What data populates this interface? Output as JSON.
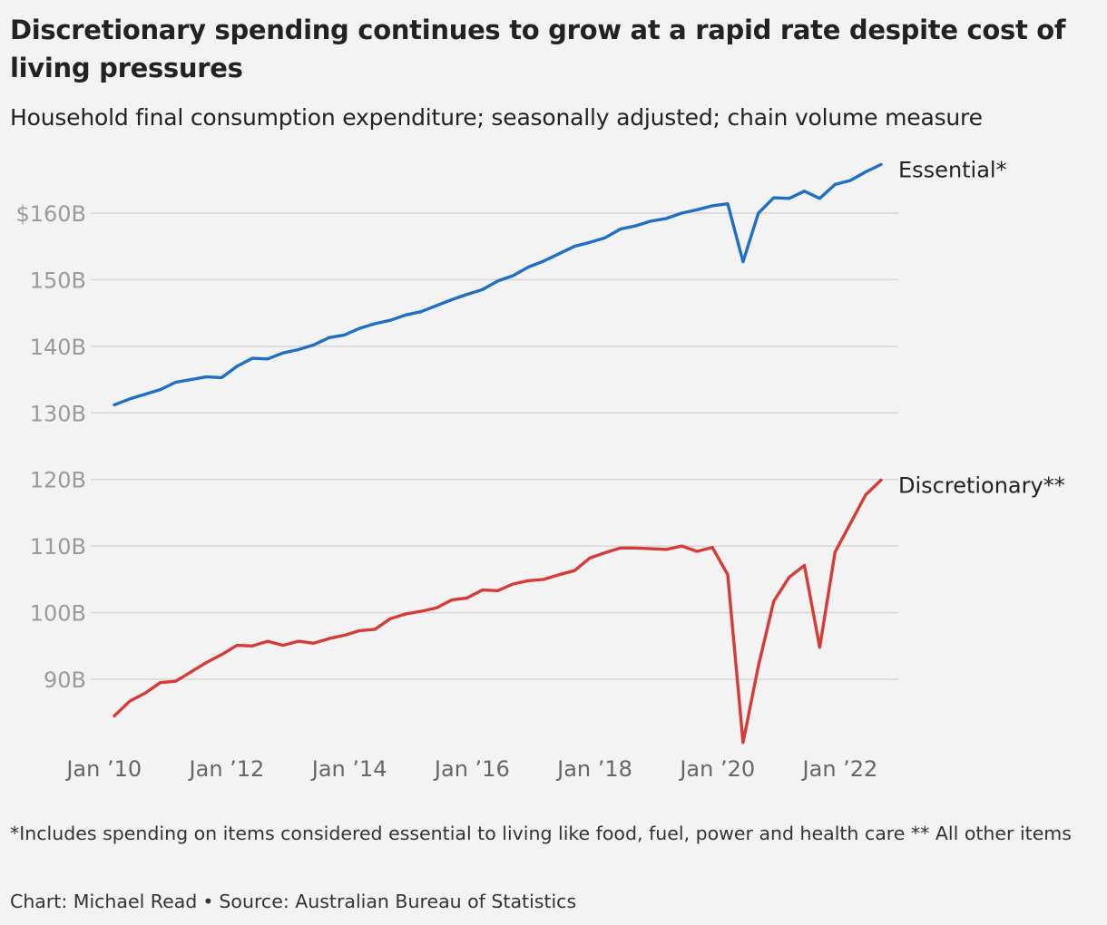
{
  "chart_data": {
    "type": "line",
    "title": "Discretionary spending continues to grow at a rapid rate despite cost of living pressures",
    "subtitle": "Household final consumption expenditure; seasonally adjusted; chain volume measure",
    "xlabel": "",
    "ylabel": "",
    "x_start": "2010-03",
    "x_step_months": 3,
    "x_ticks": [
      "Jan ’10",
      "Jan ’12",
      "Jan ’14",
      "Jan ’16",
      "Jan ’18",
      "Jan ’20",
      "Jan ’22"
    ],
    "y_ticks": [
      "$160B",
      "150B",
      "140B",
      "130B",
      "120B",
      "110B",
      "100B",
      "90B"
    ],
    "y_tick_values": [
      160,
      150,
      140,
      130,
      120,
      110,
      100,
      90
    ],
    "ylim": [
      77,
      168
    ],
    "grid": true,
    "legend": "direct labels at line ends",
    "series": [
      {
        "name": "Essential*",
        "color": "#1f6fc5",
        "values": [
          131.2,
          132.1,
          132.8,
          133.5,
          134.6,
          135.0,
          135.4,
          135.3,
          137.0,
          138.2,
          138.1,
          139.0,
          139.5,
          140.2,
          141.3,
          141.7,
          142.7,
          143.4,
          143.9,
          144.7,
          145.2,
          146.1,
          147.0,
          147.8,
          148.5,
          149.8,
          150.6,
          151.9,
          152.8,
          153.9,
          155.0,
          155.6,
          156.3,
          157.6,
          158.1,
          158.8,
          159.2,
          160.0,
          160.5,
          161.1,
          161.4,
          152.7,
          160.0,
          162.3,
          162.2,
          163.3,
          162.2,
          164.3,
          164.9,
          166.2,
          167.3
        ]
      },
      {
        "name": "Discretionary**",
        "color": "#d63b36",
        "values": [
          84.5,
          86.7,
          87.9,
          89.5,
          89.7,
          91.1,
          92.5,
          93.7,
          95.1,
          95.0,
          95.7,
          95.1,
          95.7,
          95.4,
          96.1,
          96.6,
          97.3,
          97.5,
          99.1,
          99.8,
          100.2,
          100.7,
          101.9,
          102.2,
          103.4,
          103.3,
          104.3,
          104.8,
          105.0,
          105.7,
          106.3,
          108.2,
          109.0,
          109.7,
          109.7,
          109.6,
          109.5,
          110.0,
          109.2,
          109.8,
          105.7,
          80.5,
          92.0,
          101.7,
          105.3,
          107.1,
          94.8,
          109.1,
          113.4,
          117.7,
          119.9
        ]
      }
    ]
  },
  "footnote": "*Includes spending on items considered essential to living like food, fuel, power and health care ** All other items",
  "credit": {
    "author": "Chart: Michael Read",
    "separator": "•",
    "source": "Source: Australian Bureau of Statistics"
  }
}
